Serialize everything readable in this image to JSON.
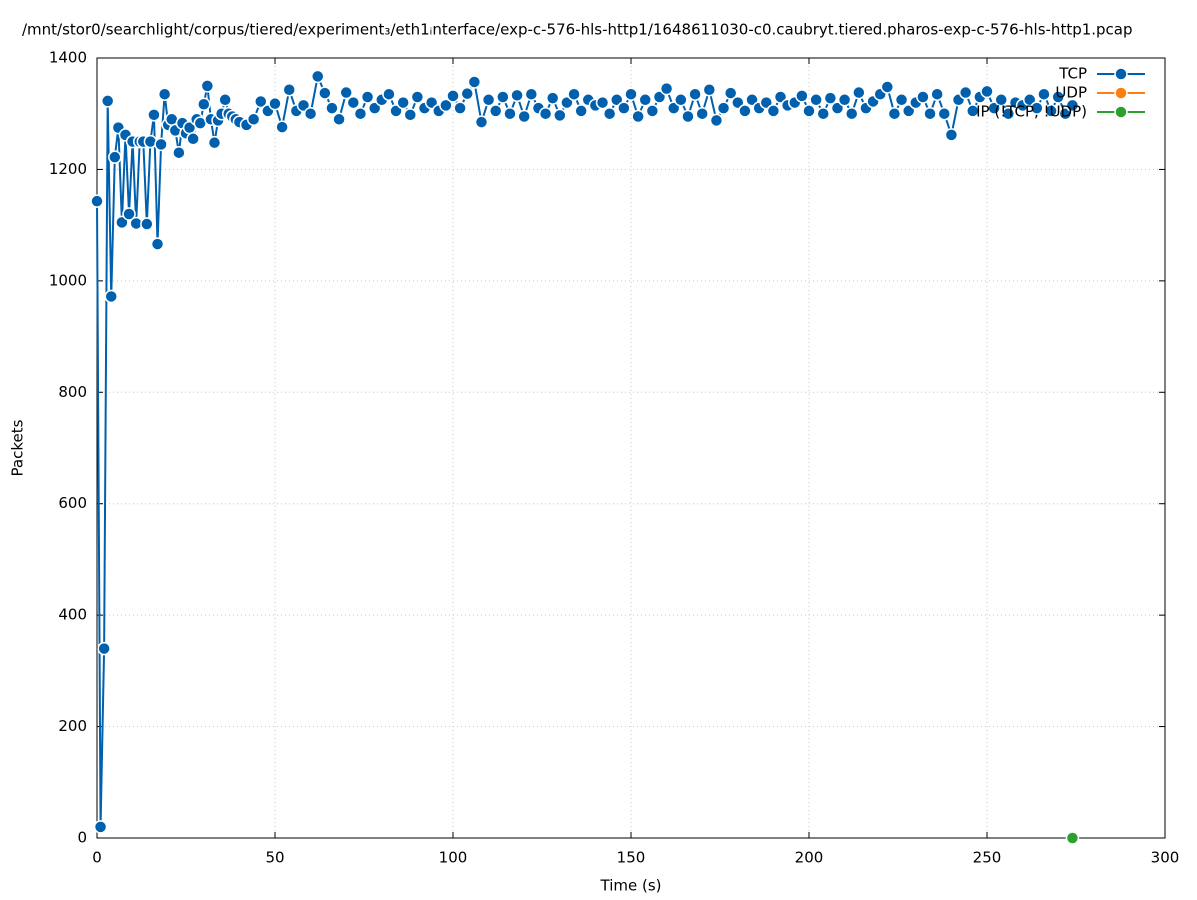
{
  "chart_data": {
    "type": "line",
    "title": "/mnt/stor0/searchlight/corpus/tiered/experiment₃/eth1ᵢnterface/exp-c-576-hls-http1/1648611030-c0.caubryt.tiered.pharos-exp-c-576-hls-http1.pcap",
    "x_label": "Time (s)",
    "y_label": "Packets",
    "xlim": [
      0,
      300
    ],
    "xticks": [
      0,
      50,
      100,
      150,
      200,
      250,
      300
    ],
    "ylim": [
      0,
      1400
    ],
    "yticks": [
      0,
      200,
      400,
      600,
      800,
      1000,
      1200,
      1400
    ],
    "grid": true,
    "legend": "top-right",
    "series": [
      {
        "name": "TCP",
        "color": "#0060ad",
        "x": [
          0,
          1,
          2,
          3,
          4,
          5,
          6,
          7,
          8,
          9,
          10,
          11,
          12,
          13,
          14,
          15,
          16,
          17,
          18,
          19,
          20,
          21,
          22,
          23,
          24,
          25,
          26,
          27,
          28,
          29,
          30,
          31,
          32,
          33,
          34,
          35,
          36,
          37,
          38,
          39,
          40,
          42,
          44,
          46,
          48,
          50,
          52,
          54,
          56,
          58,
          60,
          62,
          64,
          66,
          68,
          70,
          72,
          74,
          76,
          78,
          80,
          82,
          84,
          86,
          88,
          90,
          92,
          94,
          96,
          98,
          100,
          102,
          104,
          106,
          108,
          110,
          112,
          114,
          116,
          118,
          120,
          122,
          124,
          126,
          128,
          130,
          132,
          134,
          136,
          138,
          140,
          142,
          144,
          146,
          148,
          150,
          152,
          154,
          156,
          158,
          160,
          162,
          164,
          166,
          168,
          170,
          172,
          174,
          176,
          178,
          180,
          182,
          184,
          186,
          188,
          190,
          192,
          194,
          196,
          198,
          200,
          202,
          204,
          206,
          208,
          210,
          212,
          214,
          216,
          218,
          220,
          222,
          224,
          226,
          228,
          230,
          232,
          234,
          236,
          238,
          240,
          242,
          244,
          246,
          248,
          250,
          252,
          254,
          256,
          258,
          260,
          262,
          264,
          266,
          268,
          270,
          272,
          274
        ],
        "values": [
          1143,
          20,
          340,
          1323,
          972,
          1222,
          1275,
          1105,
          1262,
          1120,
          1250,
          1103,
          1250,
          1250,
          1102,
          1250,
          1298,
          1066,
          1245,
          1335,
          1280,
          1290,
          1270,
          1230,
          1283,
          1265,
          1275,
          1255,
          1290,
          1283,
          1317,
          1350,
          1290,
          1248,
          1288,
          1300,
          1325,
          1300,
          1295,
          1290,
          1285,
          1280,
          1290,
          1322,
          1305,
          1318,
          1276,
          1343,
          1305,
          1315,
          1300,
          1367,
          1337,
          1310,
          1290,
          1338,
          1320,
          1300,
          1330,
          1310,
          1325,
          1335,
          1305,
          1320,
          1298,
          1330,
          1310,
          1320,
          1305,
          1315,
          1332,
          1310,
          1336,
          1357,
          1285,
          1325,
          1305,
          1330,
          1300,
          1333,
          1295,
          1335,
          1310,
          1300,
          1328,
          1297,
          1320,
          1335,
          1305,
          1325,
          1315,
          1320,
          1300,
          1325,
          1310,
          1335,
          1295,
          1325,
          1305,
          1330,
          1345,
          1310,
          1325,
          1295,
          1335,
          1300,
          1343,
          1288,
          1310,
          1337,
          1320,
          1305,
          1325,
          1310,
          1320,
          1305,
          1330,
          1315,
          1320,
          1332,
          1305,
          1325,
          1300,
          1328,
          1310,
          1325,
          1300,
          1338,
          1310,
          1322,
          1335,
          1348,
          1300,
          1325,
          1305,
          1320,
          1330,
          1300,
          1335,
          1300,
          1262,
          1325,
          1338,
          1305,
          1330,
          1340,
          1310,
          1325,
          1300,
          1320,
          1315,
          1325,
          1310,
          1335,
          1305,
          1330,
          1300,
          1315
        ]
      },
      {
        "name": "UDP",
        "color": "#ff7f0e",
        "x": [],
        "values": []
      },
      {
        "name": "IP (!TCP, !UDP)",
        "color": "#2ca02c",
        "x": [
          274
        ],
        "values": [
          0
        ]
      }
    ]
  }
}
